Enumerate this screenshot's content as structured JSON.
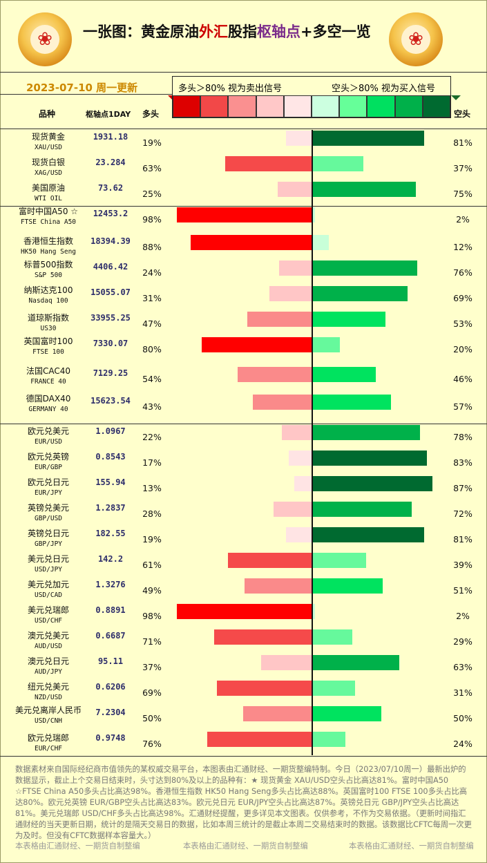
{
  "header": {
    "title_parts": [
      "一张图：黄金原油",
      "外汇",
      "股指",
      "枢轴点",
      "+多空一览"
    ],
    "date": "2023-07-10  周一更新",
    "col_name": "品种",
    "col_pivot": "枢轴点1DAY",
    "col_long": "多头",
    "col_short": "空头",
    "legend_sell": "多头＞80%  视为卖出信号",
    "legend_buy": "空头＞80%  视为买入信号"
  },
  "colors": {
    "legend_swatches": [
      "#dd0000",
      "#f24848",
      "#fa9090",
      "#ffc8c8",
      "#ffe6e6",
      "#ccffe0",
      "#66ff99",
      "#00e060",
      "#00b04a",
      "#006a30"
    ]
  },
  "chart_data": {
    "type": "bar",
    "categories": [
      "现货黄金 XAU/USD",
      "现货白银 XAG/USD",
      "美国原油 WTI OIL",
      "富时中国A50 ☆ FTSE China A50",
      "香港恒生指数 HK50 Hang Seng",
      "标普500指数 S&P 500",
      "纳斯达克100 Nasdaq 100",
      "道琼斯指数 US30",
      "英国富时100 FTSE 100",
      "法国CAC40 FRANCE 40",
      "德国DAX40 GERMANY 40",
      "欧元兑美元 EUR/USD",
      "欧元兑英镑 EUR/GBP",
      "欧元兑日元 EUR/JPY",
      "英镑兑美元 GBP/USD",
      "英镑兑日元 GBP/JPY",
      "美元兑日元 USD/JPY",
      "美元兑加元 USD/CAD",
      "美元兑瑞郎 USD/CHF",
      "澳元兑美元 AUD/USD",
      "澳元兑日元 AUD/JPY",
      "纽元兑美元 NZD/USD",
      "美元兑离岸人民币 USD/CNH",
      "欧元兑瑞郎 EUR/CHF"
    ],
    "series": [
      {
        "name": "多头",
        "values": [
          19,
          63,
          25,
          98,
          88,
          24,
          31,
          47,
          80,
          54,
          43,
          22,
          17,
          13,
          28,
          19,
          61,
          49,
          98,
          71,
          37,
          69,
          50,
          76
        ]
      },
      {
        "name": "空头",
        "values": [
          81,
          37,
          75,
          2,
          12,
          76,
          69,
          53,
          20,
          46,
          57,
          78,
          83,
          87,
          72,
          81,
          39,
          51,
          2,
          29,
          63,
          31,
          50,
          24
        ]
      }
    ],
    "xlim": [
      0,
      100
    ]
  },
  "rows": [
    {
      "name": "现货黄金",
      "code": "XAU/USD",
      "pivot": "1931.18",
      "long": "19%",
      "short": "81%"
    },
    {
      "name": "现货白银",
      "code": "XAG/USD",
      "pivot": "23.284",
      "long": "63%",
      "short": "37%"
    },
    {
      "name": "美国原油",
      "code": "WTI OIL",
      "pivot": "73.62",
      "long": "25%",
      "short": "75%"
    },
    {
      "name": "富时中国A50 ☆",
      "code": "FTSE China A50",
      "pivot": "12453.2",
      "long": "98%",
      "short": "2%"
    },
    {
      "name": "香港恒生指数",
      "code": "HK50 Hang Seng",
      "pivot": "18394.39",
      "long": "88%",
      "short": "12%"
    },
    {
      "name": "标普500指数",
      "code": "S&P 500",
      "pivot": "4406.42",
      "long": "24%",
      "short": "76%"
    },
    {
      "name": "纳斯达克100",
      "code": "Nasdaq 100",
      "pivot": "15055.07",
      "long": "31%",
      "short": "69%"
    },
    {
      "name": "道琼斯指数",
      "code": "US30",
      "pivot": "33955.25",
      "long": "47%",
      "short": "53%"
    },
    {
      "name": "英国富时100",
      "code": "FTSE 100",
      "pivot": "7330.07",
      "long": "80%",
      "short": "20%"
    },
    {
      "name": "法国CAC40",
      "code": "FRANCE 40",
      "pivot": "7129.25",
      "long": "54%",
      "short": "46%"
    },
    {
      "name": "德国DAX40",
      "code": "GERMANY 40",
      "pivot": "15623.54",
      "long": "43%",
      "short": "57%"
    },
    {
      "name": "欧元兑美元",
      "code": "EUR/USD",
      "pivot": "1.0967",
      "long": "22%",
      "short": "78%"
    },
    {
      "name": "欧元兑英镑",
      "code": "EUR/GBP",
      "pivot": "0.8543",
      "long": "17%",
      "short": "83%"
    },
    {
      "name": "欧元兑日元",
      "code": "EUR/JPY",
      "pivot": "155.94",
      "long": "13%",
      "short": "87%"
    },
    {
      "name": "英镑兑美元",
      "code": "GBP/USD",
      "pivot": "1.2837",
      "long": "28%",
      "short": "72%"
    },
    {
      "name": "英镑兑日元",
      "code": "GBP/JPY",
      "pivot": "182.55",
      "long": "19%",
      "short": "81%"
    },
    {
      "name": "美元兑日元",
      "code": "USD/JPY",
      "pivot": "142.2",
      "long": "61%",
      "short": "39%"
    },
    {
      "name": "美元兑加元",
      "code": "USD/CAD",
      "pivot": "1.3276",
      "long": "49%",
      "short": "51%"
    },
    {
      "name": "美元兑瑞郎",
      "code": "USD/CHF",
      "pivot": "0.8891",
      "long": "98%",
      "short": "2%"
    },
    {
      "name": "澳元兑美元",
      "code": "AUD/USD",
      "pivot": "0.6687",
      "long": "71%",
      "short": "29%"
    },
    {
      "name": "澳元兑日元",
      "code": "AUD/JPY",
      "pivot": "95.11",
      "long": "37%",
      "short": "63%"
    },
    {
      "name": "纽元兑美元",
      "code": "NZD/USD",
      "pivot": "0.6206",
      "long": "69%",
      "short": "31%"
    },
    {
      "name": "美元兑离岸人民币",
      "code": "USD/CNH",
      "pivot": "7.2304",
      "long": "50%",
      "short": "50%"
    },
    {
      "name": "欧元兑瑞郎",
      "code": "EUR/CHF",
      "pivot": "0.9748",
      "long": "76%",
      "short": "24%"
    }
  ],
  "note": "数据素材来自国际经纪商市值领先的某权威交易平台，本图表由汇通财经、一期货整编特制。今日（2023/07/10周一）最新出炉的数据显示，截止上个交易日结束时，头寸达到80%及以上的品种有：★ 现货黄金 XAU/USD空头占比高达81%。富时中国A50 ☆FTSE China A50多头占比高达98%。香港恒生指数 HK50 Hang Seng多头占比高达88%。英国富时100 FTSE 100多头占比高达80%。欧元兑英镑 EUR/GBP空头占比高达83%。欧元兑日元 EUR/JPY空头占比高达87%。英镑兑日元 GBP/JPY空头占比高达81%。美元兑瑞郎 USD/CHF多头占比高达98%。汇通财经提醒，更多详见本文图表。仅供参考，不作为交易依据。（更新时间指汇通财经的当天更新日期，统计的是隔天交易日的数据，比如本周三统计的是截止本周二交易结束时的数据。该数据比CFTC每周一次更为及时。但没有CFTC数据样本容量大。）",
  "footer": [
    "本表格由汇通财经、一期货自制整编",
    "本表格由汇通财经、一期货自制整编",
    "本表格由汇通财经、一期货自制整编"
  ]
}
